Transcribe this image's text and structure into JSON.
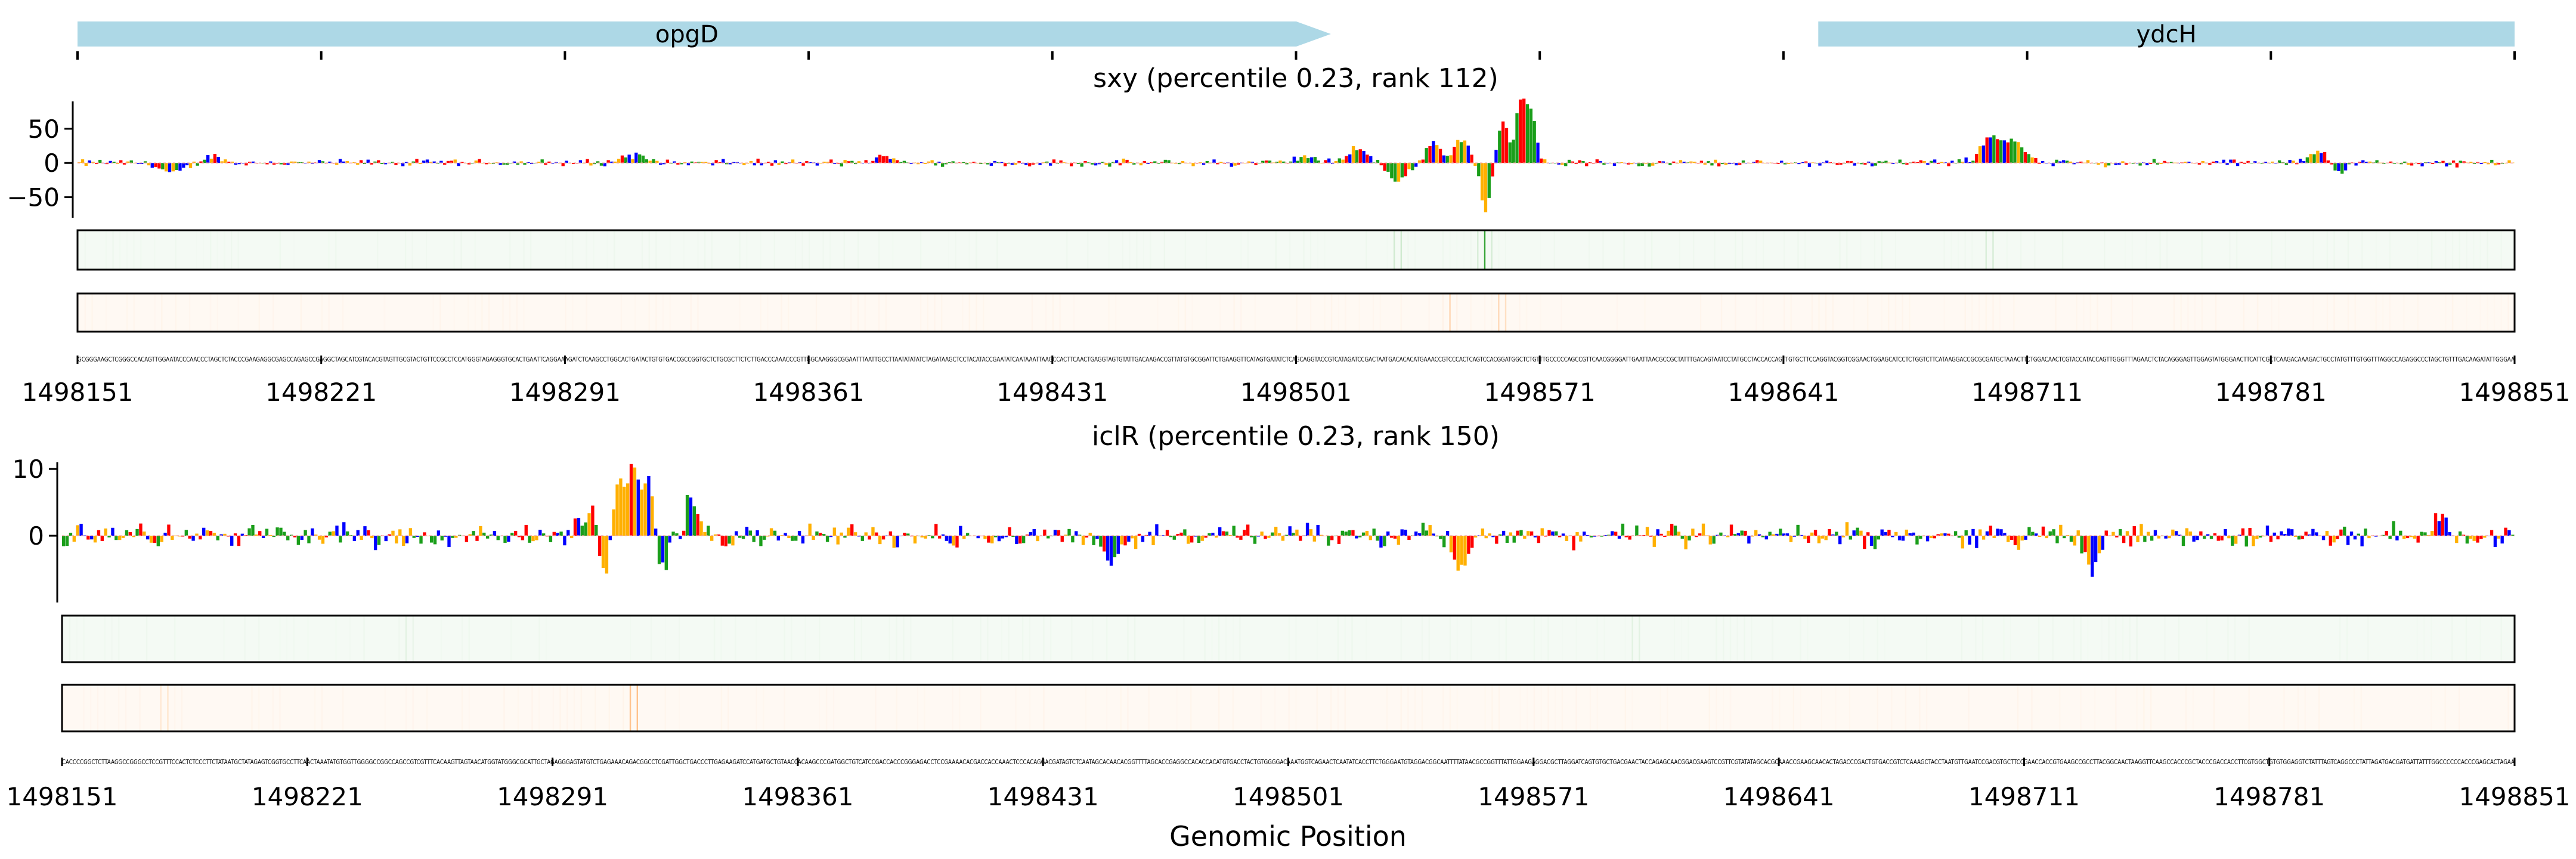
{
  "chart_data": {
    "type": "sequence-track",
    "xlabel": "Genomic Position",
    "x_ticks": [
      "1498151",
      "1498221",
      "1498291",
      "1498361",
      "1498431",
      "1498501",
      "1498571",
      "1498641",
      "1498711",
      "1498781",
      "1498851"
    ],
    "xlim": [
      1498151,
      1498851
    ],
    "genes": [
      {
        "name": "opgD",
        "start": 1498151,
        "end": 1498511,
        "strand": "+",
        "color": "#add8e6"
      },
      {
        "name": "ydcH",
        "start": 1498651,
        "end": 1498851,
        "strand": "+",
        "color": "#add8e6"
      }
    ],
    "base_colors": {
      "A": "#1a9e1a",
      "C": "#0000ff",
      "G": "#ffb000",
      "T": "#ff0000"
    },
    "panels": [
      {
        "title": "sxy (percentile 0.23, rank 112)",
        "yticks": [
          "50",
          "0",
          "−50"
        ],
        "ylim": [
          -80,
          90
        ],
        "noise": 5,
        "peaks": [
          {
            "pos": 1498178,
            "height": -15,
            "width": 5
          },
          {
            "pos": 1498189,
            "height": 10,
            "width": 4
          },
          {
            "pos": 1498310,
            "height": 12,
            "width": 5
          },
          {
            "pos": 1498383,
            "height": 8,
            "width": 5
          },
          {
            "pos": 1498503,
            "height": 10,
            "width": 4
          },
          {
            "pos": 1498518,
            "height": 22,
            "width": 4
          },
          {
            "pos": 1498530,
            "height": -25,
            "width": 4
          },
          {
            "pos": 1498540,
            "height": 30,
            "width": 3
          },
          {
            "pos": 1498548,
            "height": 35,
            "width": 3
          },
          {
            "pos": 1498555,
            "height": -70,
            "width": 2
          },
          {
            "pos": 1498560,
            "height": 60,
            "width": 2
          },
          {
            "pos": 1498565,
            "height": 90,
            "width": 2
          },
          {
            "pos": 1498568,
            "height": 75,
            "width": 2
          },
          {
            "pos": 1498700,
            "height": 40,
            "width": 4
          },
          {
            "pos": 1498707,
            "height": 30,
            "width": 4
          },
          {
            "pos": 1498795,
            "height": 20,
            "width": 4
          },
          {
            "pos": 1498800,
            "height": -18,
            "width": 3
          }
        ],
        "strip1_color": "#2ca02c",
        "strip2_color": "#ff7f0e",
        "strip1_hot": [
          {
            "pos": 1498555,
            "value": 0.9
          },
          {
            "pos": 1498530,
            "value": 0.25
          },
          {
            "pos": 1498700,
            "value": 0.2
          }
        ],
        "strip2_hot": [
          {
            "pos": 1498560,
            "value": 0.35
          },
          {
            "pos": 1498545,
            "value": 0.25
          }
        ]
      },
      {
        "title": "iclR (percentile 0.23, rank 150)",
        "yticks": [
          "10",
          "0"
        ],
        "ylim": [
          -10,
          11
        ],
        "noise": 1.6,
        "peaks": [
          {
            "pos": 1498302,
            "height": 4,
            "width": 4
          },
          {
            "pos": 1498305,
            "height": -7.5,
            "width": 2
          },
          {
            "pos": 1498310,
            "height": 9,
            "width": 2
          },
          {
            "pos": 1498314,
            "height": 10.5,
            "width": 2
          },
          {
            "pos": 1498318,
            "height": 7,
            "width": 2
          },
          {
            "pos": 1498322,
            "height": -4.5,
            "width": 2
          },
          {
            "pos": 1498330,
            "height": 6.5,
            "width": 2
          },
          {
            "pos": 1498450,
            "height": -4,
            "width": 3
          },
          {
            "pos": 1498550,
            "height": -5,
            "width": 3
          },
          {
            "pos": 1498730,
            "height": -5,
            "width": 3
          },
          {
            "pos": 1498830,
            "height": 3,
            "width": 3
          }
        ],
        "strip1_color": "#2ca02c",
        "strip2_color": "#ff7f0e",
        "strip1_hot": [
          {
            "pos": 1498250,
            "value": 0.1
          },
          {
            "pos": 1498600,
            "value": 0.1
          }
        ],
        "strip2_hot": [
          {
            "pos": 1498314,
            "value": 0.7
          },
          {
            "pos": 1498180,
            "value": 0.2
          }
        ]
      }
    ]
  }
}
